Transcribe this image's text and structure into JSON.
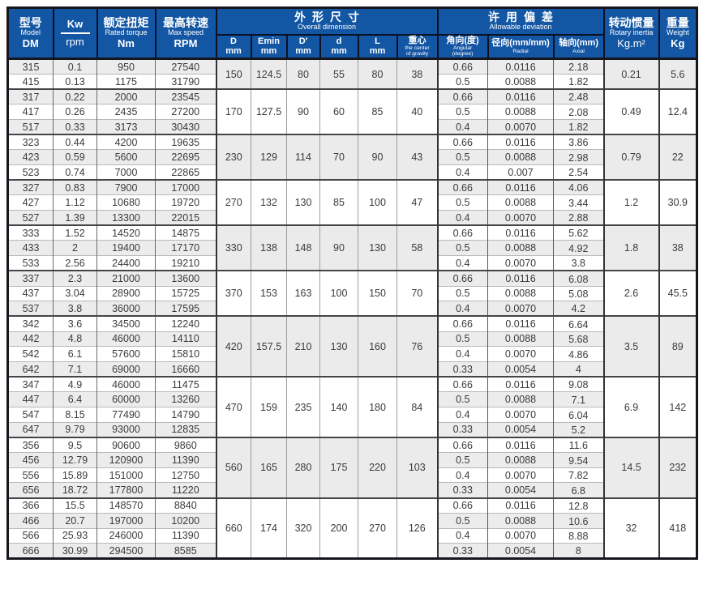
{
  "header": {
    "model": {
      "zh": "型号",
      "en": "Model",
      "code": "DM"
    },
    "kw": {
      "top": "Kw",
      "bottom": "rpm"
    },
    "torque": {
      "zh": "额定扭矩",
      "en": "Rated torque",
      "unit": "Nm"
    },
    "speed": {
      "zh": "最高转速",
      "en": "Max speed",
      "unit": "RPM"
    },
    "dimension": {
      "zh": "外形尺寸",
      "en": "Overall dimension",
      "cols": [
        {
          "line1": "D",
          "line2": "mm"
        },
        {
          "line1": "Emin",
          "line2": "mm"
        },
        {
          "line1": "D′",
          "line2": "mm"
        },
        {
          "line1": "d",
          "line2": "mm"
        },
        {
          "line1": "L",
          "line2": "mm"
        },
        {
          "line1": "重心",
          "sub1": "the center",
          "sub2": "of gravity"
        }
      ]
    },
    "deviation": {
      "zh": "许用偏差",
      "en": "Allowable deviation",
      "cols": [
        {
          "line1": "角向(度)",
          "sub1": "Angular",
          "sub2": "(degree)"
        },
        {
          "line1": "径向(mm/mm)",
          "sub1": "Radial"
        },
        {
          "line1": "轴向(mm)",
          "sub1": "Axial"
        }
      ]
    },
    "inertia": {
      "zh": "转动惯量",
      "en": "Rotary inertia",
      "unit": "Kg.m²"
    },
    "weight": {
      "zh": "重量",
      "en": "Weight",
      "unit": "Kg"
    }
  },
  "colors": {
    "header_blue": "#1356a3",
    "row_shade": "#ececec",
    "border_dark": "#16161f"
  },
  "groups": [
    {
      "dims": {
        "D": "150",
        "Emin": "124.5",
        "Dprime": "80",
        "d": "55",
        "L": "80",
        "cg": "38"
      },
      "inertia": "0.21",
      "weight": "5.6",
      "rows": [
        {
          "model": "315",
          "kw": "0.1",
          "torque": "950",
          "speed": "27540",
          "angular": "0.66",
          "radial": "0.0116",
          "axial": "2.18"
        },
        {
          "model": "415",
          "kw": "0.13",
          "torque": "1175",
          "speed": "31790",
          "angular": "0.5",
          "radial": "0.0088",
          "axial": "1.82"
        }
      ]
    },
    {
      "dims": {
        "D": "170",
        "Emin": "127.5",
        "Dprime": "90",
        "d": "60",
        "L": "85",
        "cg": "40"
      },
      "inertia": "0.49",
      "weight": "12.4",
      "rows": [
        {
          "model": "317",
          "kw": "0.22",
          "torque": "2000",
          "speed": "23545",
          "angular": "0.66",
          "radial": "0.0116",
          "axial": "2.48"
        },
        {
          "model": "417",
          "kw": "0.26",
          "torque": "2435",
          "speed": "27200",
          "angular": "0.5",
          "radial": "0.0088",
          "axial": "2.08"
        },
        {
          "model": "517",
          "kw": "0.33",
          "torque": "3173",
          "speed": "30430",
          "angular": "0.4",
          "radial": "0.0070",
          "axial": "1.82"
        }
      ]
    },
    {
      "dims": {
        "D": "230",
        "Emin": "129",
        "Dprime": "114",
        "d": "70",
        "L": "90",
        "cg": "43"
      },
      "inertia": "0.79",
      "weight": "22",
      "rows": [
        {
          "model": "323",
          "kw": "0.44",
          "torque": "4200",
          "speed": "19635",
          "angular": "0.66",
          "radial": "0.0116",
          "axial": "3.86"
        },
        {
          "model": "423",
          "kw": "0.59",
          "torque": "5600",
          "speed": "22695",
          "angular": "0.5",
          "radial": "0.0088",
          "axial": "2.98"
        },
        {
          "model": "523",
          "kw": "0.74",
          "torque": "7000",
          "speed": "22865",
          "angular": "0.4",
          "radial": "0.007",
          "axial": "2.54"
        }
      ]
    },
    {
      "dims": {
        "D": "270",
        "Emin": "132",
        "Dprime": "130",
        "d": "85",
        "L": "100",
        "cg": "47"
      },
      "inertia": "1.2",
      "weight": "30.9",
      "rows": [
        {
          "model": "327",
          "kw": "0.83",
          "torque": "7900",
          "speed": "17000",
          "angular": "0.66",
          "radial": "0.0116",
          "axial": "4.06"
        },
        {
          "model": "427",
          "kw": "1.12",
          "torque": "10680",
          "speed": "19720",
          "angular": "0.5",
          "radial": "0.0088",
          "axial": "3.44"
        },
        {
          "model": "527",
          "kw": "1.39",
          "torque": "13300",
          "speed": "22015",
          "angular": "0.4",
          "radial": "0.0070",
          "axial": "2.88"
        }
      ]
    },
    {
      "dims": {
        "D": "330",
        "Emin": "138",
        "Dprime": "148",
        "d": "90",
        "L": "130",
        "cg": "58"
      },
      "inertia": "1.8",
      "weight": "38",
      "rows": [
        {
          "model": "333",
          "kw": "1.52",
          "torque": "14520",
          "speed": "14875",
          "angular": "0.66",
          "radial": "0.0116",
          "axial": "5.62"
        },
        {
          "model": "433",
          "kw": "2",
          "torque": "19400",
          "speed": "17170",
          "angular": "0.5",
          "radial": "0.0088",
          "axial": "4.92"
        },
        {
          "model": "533",
          "kw": "2.56",
          "torque": "24400",
          "speed": "19210",
          "angular": "0.4",
          "radial": "0.0070",
          "axial": "3.8"
        }
      ]
    },
    {
      "dims": {
        "D": "370",
        "Emin": "153",
        "Dprime": "163",
        "d": "100",
        "L": "150",
        "cg": "70"
      },
      "inertia": "2.6",
      "weight": "45.5",
      "rows": [
        {
          "model": "337",
          "kw": "2.3",
          "torque": "21000",
          "speed": "13600",
          "angular": "0.66",
          "radial": "0.0116",
          "axial": "6.08"
        },
        {
          "model": "437",
          "kw": "3.04",
          "torque": "28900",
          "speed": "15725",
          "angular": "0.5",
          "radial": "0.0088",
          "axial": "5.08"
        },
        {
          "model": "537",
          "kw": "3.8",
          "torque": "36000",
          "speed": "17595",
          "angular": "0.4",
          "radial": "0.0070",
          "axial": "4.2"
        }
      ]
    },
    {
      "dims": {
        "D": "420",
        "Emin": "157.5",
        "Dprime": "210",
        "d": "130",
        "L": "160",
        "cg": "76"
      },
      "inertia": "3.5",
      "weight": "89",
      "rows": [
        {
          "model": "342",
          "kw": "3.6",
          "torque": "34500",
          "speed": "12240",
          "angular": "0.66",
          "radial": "0.0116",
          "axial": "6.64"
        },
        {
          "model": "442",
          "kw": "4.8",
          "torque": "46000",
          "speed": "14110",
          "angular": "0.5",
          "radial": "0.0088",
          "axial": "5.68"
        },
        {
          "model": "542",
          "kw": "6.1",
          "torque": "57600",
          "speed": "15810",
          "angular": "0.4",
          "radial": "0.0070",
          "axial": "4.86"
        },
        {
          "model": "642",
          "kw": "7.1",
          "torque": "69000",
          "speed": "16660",
          "angular": "0.33",
          "radial": "0.0054",
          "axial": "4"
        }
      ]
    },
    {
      "dims": {
        "D": "470",
        "Emin": "159",
        "Dprime": "235",
        "d": "140",
        "L": "180",
        "cg": "84"
      },
      "inertia": "6.9",
      "weight": "142",
      "rows": [
        {
          "model": "347",
          "kw": "4.9",
          "torque": "46000",
          "speed": "11475",
          "angular": "0.66",
          "radial": "0.0116",
          "axial": "9.08"
        },
        {
          "model": "447",
          "kw": "6.4",
          "torque": "60000",
          "speed": "13260",
          "angular": "0.5",
          "radial": "0.0088",
          "axial": "7.1"
        },
        {
          "model": "547",
          "kw": "8.15",
          "torque": "77490",
          "speed": "14790",
          "angular": "0.4",
          "radial": "0.0070",
          "axial": "6.04"
        },
        {
          "model": "647",
          "kw": "9.79",
          "torque": "93000",
          "speed": "12835",
          "angular": "0.33",
          "radial": "0.0054",
          "axial": "5.2"
        }
      ]
    },
    {
      "dims": {
        "D": "560",
        "Emin": "165",
        "Dprime": "280",
        "d": "175",
        "L": "220",
        "cg": "103"
      },
      "inertia": "14.5",
      "weight": "232",
      "rows": [
        {
          "model": "356",
          "kw": "9.5",
          "torque": "90600",
          "speed": "9860",
          "angular": "0.66",
          "radial": "0.0116",
          "axial": "11.6"
        },
        {
          "model": "456",
          "kw": "12.79",
          "torque": "120900",
          "speed": "11390",
          "angular": "0.5",
          "radial": "0.0088",
          "axial": "9.54"
        },
        {
          "model": "556",
          "kw": "15.89",
          "torque": "151000",
          "speed": "12750",
          "angular": "0.4",
          "radial": "0.0070",
          "axial": "7.82"
        },
        {
          "model": "656",
          "kw": "18.72",
          "torque": "177800",
          "speed": "11220",
          "angular": "0.33",
          "radial": "0.0054",
          "axial": "6.8"
        }
      ]
    },
    {
      "dims": {
        "D": "660",
        "Emin": "174",
        "Dprime": "320",
        "d": "200",
        "L": "270",
        "cg": "126"
      },
      "inertia": "32",
      "weight": "418",
      "rows": [
        {
          "model": "366",
          "kw": "15.5",
          "torque": "148570",
          "speed": "8840",
          "angular": "0.66",
          "radial": "0.0116",
          "axial": "12.8"
        },
        {
          "model": "466",
          "kw": "20.7",
          "torque": "197000",
          "speed": "10200",
          "angular": "0.5",
          "radial": "0.0088",
          "axial": "10.6"
        },
        {
          "model": "566",
          "kw": "25.93",
          "torque": "246000",
          "speed": "11390",
          "angular": "0.4",
          "radial": "0.0070",
          "axial": "8.88"
        },
        {
          "model": "666",
          "kw": "30.99",
          "torque": "294500",
          "speed": "8585",
          "angular": "0.33",
          "radial": "0.0054",
          "axial": "8"
        }
      ]
    }
  ]
}
